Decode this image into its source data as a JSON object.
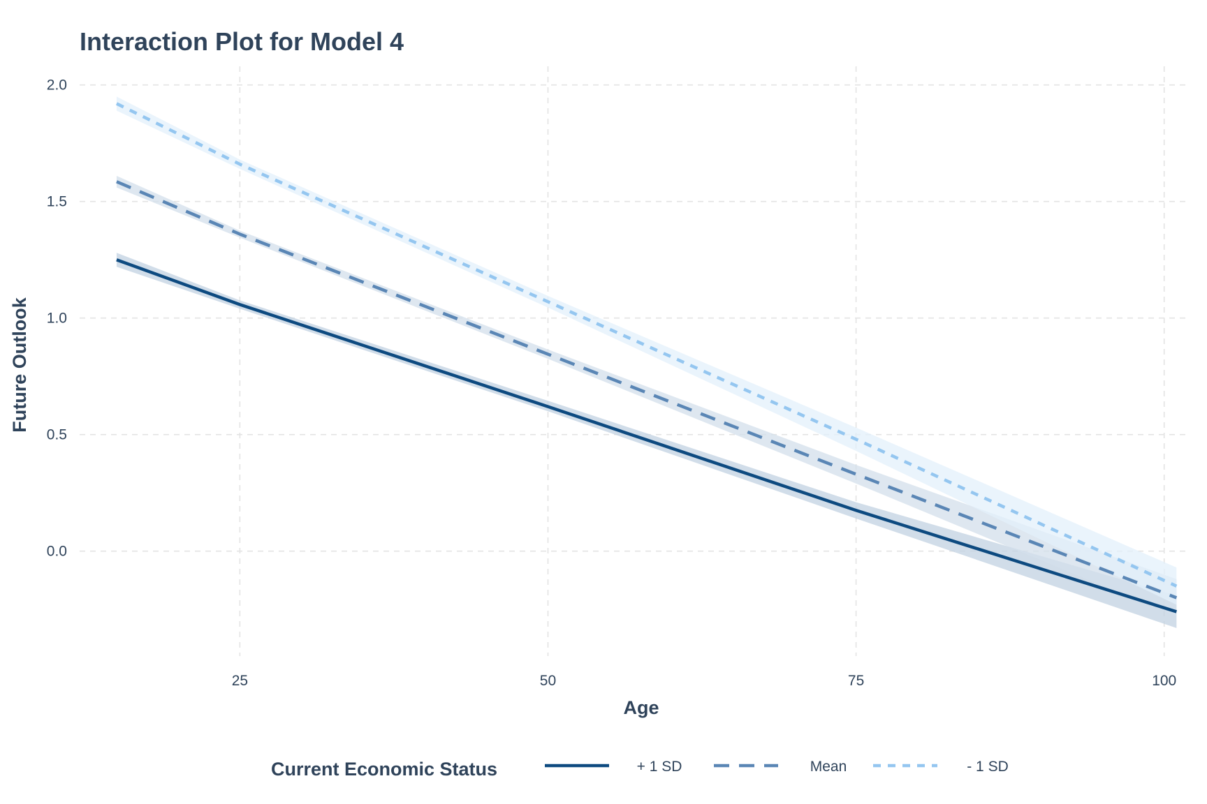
{
  "chart_data": {
    "type": "line",
    "title": "Interaction Plot for Model 4",
    "xlabel": "Age",
    "ylabel": "Future Outlook",
    "xlim": [
      12,
      102
    ],
    "ylim": [
      -0.45,
      2.08
    ],
    "x_ticks": [
      25,
      50,
      75,
      100
    ],
    "x_tick_labels": [
      "25",
      "50",
      "75",
      "100"
    ],
    "y_ticks": [
      0.0,
      0.5,
      1.0,
      1.5,
      2.0
    ],
    "y_tick_labels": [
      "0.0",
      "0.5",
      "1.0",
      "1.5",
      "2.0"
    ],
    "grid": true,
    "legend": {
      "title": "Current Economic Status",
      "position": "bottom"
    },
    "series": [
      {
        "name": "+ 1 SD",
        "linestyle": "solid",
        "color": "#0d4a80",
        "band_color": "#c2d2e1",
        "x": [
          15,
          25,
          50,
          75,
          101
        ],
        "y": [
          1.25,
          1.058,
          0.62,
          0.175,
          -0.26
        ],
        "lower": [
          1.22,
          1.04,
          0.6,
          0.14,
          -0.33
        ],
        "upper": [
          1.28,
          1.076,
          0.645,
          0.21,
          -0.19
        ]
      },
      {
        "name": "Mean",
        "linestyle": "dashed",
        "color": "#5a86b5",
        "band_color": "#d3dfeb",
        "x": [
          15,
          25,
          50,
          75,
          101
        ],
        "y": [
          1.585,
          1.36,
          0.845,
          0.33,
          -0.2
        ],
        "lower": [
          1.56,
          1.345,
          0.825,
          0.29,
          -0.28
        ],
        "upper": [
          1.61,
          1.375,
          0.865,
          0.37,
          -0.12
        ]
      },
      {
        "name": "- 1 SD",
        "linestyle": "dotted",
        "color": "#94c6f0",
        "band_color": "#e3f0fb",
        "x": [
          15,
          25,
          50,
          75,
          101
        ],
        "y": [
          1.92,
          1.66,
          1.07,
          0.48,
          -0.15
        ],
        "lower": [
          1.89,
          1.64,
          1.045,
          0.43,
          -0.23
        ],
        "upper": [
          1.95,
          1.68,
          1.095,
          0.53,
          -0.07
        ]
      }
    ]
  }
}
